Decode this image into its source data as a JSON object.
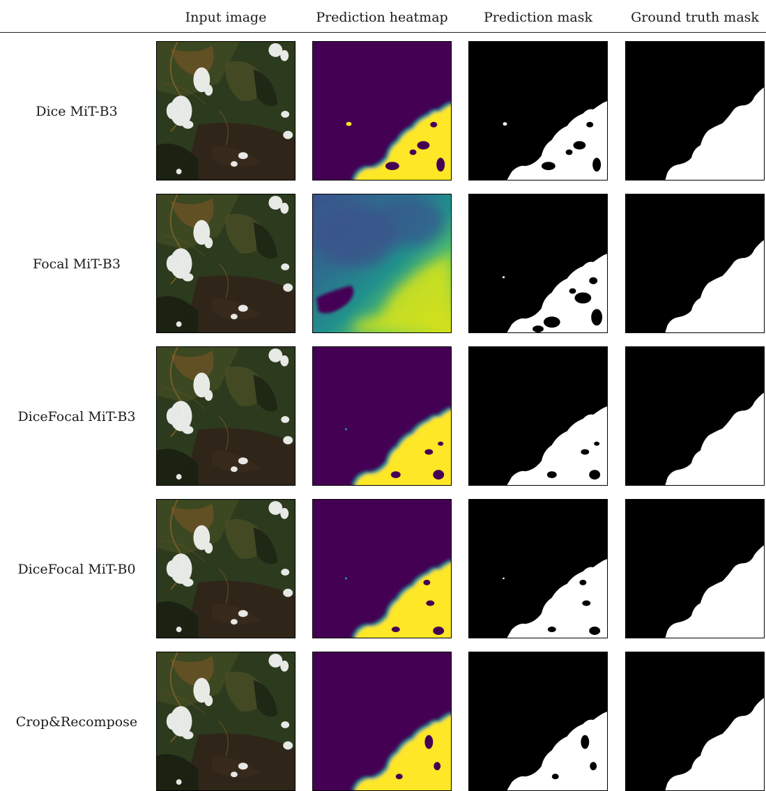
{
  "columns": [
    "Input image",
    "Prediction heatmap",
    "Prediction mask",
    "Ground truth mask"
  ],
  "rows": [
    {
      "label": "Dice MiT-B3",
      "heatmap_style": "sharp",
      "mask_variant": 0
    },
    {
      "label": "Focal MiT-B3",
      "heatmap_style": "soft",
      "mask_variant": 1
    },
    {
      "label": "DiceFocal MiT-B3",
      "heatmap_style": "sharp",
      "mask_variant": 2
    },
    {
      "label": "DiceFocal MiT-B0",
      "heatmap_style": "sharp",
      "mask_variant": 3
    },
    {
      "label": "Crop&Recompose",
      "heatmap_style": "sharp",
      "mask_variant": 4
    }
  ],
  "colors": {
    "viridis_low": "#440154",
    "viridis_mid": "#21918c",
    "viridis_high": "#fde725",
    "mask_background": "#000000",
    "mask_foreground": "#ffffff"
  }
}
